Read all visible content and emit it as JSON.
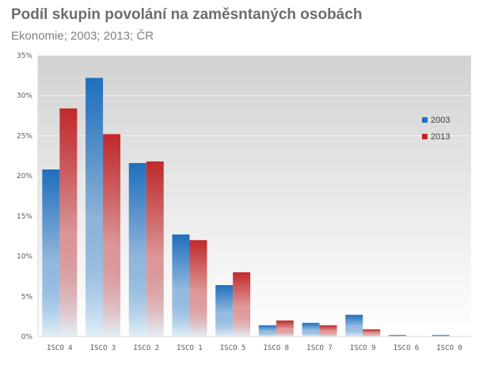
{
  "chart_data": {
    "type": "bar",
    "title": "Podíl skupin povolání na zaměsntaných osobách",
    "subtitle": "Ekonomie; 2003; 2013; ČR",
    "categories": [
      "ISCO 4",
      "ISCO 3",
      "ISCO 2",
      "ISCO 1",
      "ISCO 5",
      "ISCO 8",
      "ISCO 7",
      "ISCO 9",
      "ISCO 6",
      "ISCO 0"
    ],
    "series": [
      {
        "name": "2003",
        "values": [
          20.8,
          32.2,
          21.6,
          12.7,
          6.4,
          1.4,
          1.7,
          2.7,
          0.2,
          0.2
        ],
        "color": "#1f6fbf"
      },
      {
        "name": "2013",
        "values": [
          28.4,
          25.2,
          21.8,
          12.0,
          8.0,
          2.0,
          1.4,
          0.9,
          0.0,
          0.0
        ],
        "color": "#c0292b"
      }
    ],
    "ylim": [
      0,
      35
    ],
    "yticks": [
      "0%",
      "5%",
      "10%",
      "15%",
      "20%",
      "25%",
      "30%",
      "35%"
    ],
    "grid": true,
    "legend": "right"
  }
}
